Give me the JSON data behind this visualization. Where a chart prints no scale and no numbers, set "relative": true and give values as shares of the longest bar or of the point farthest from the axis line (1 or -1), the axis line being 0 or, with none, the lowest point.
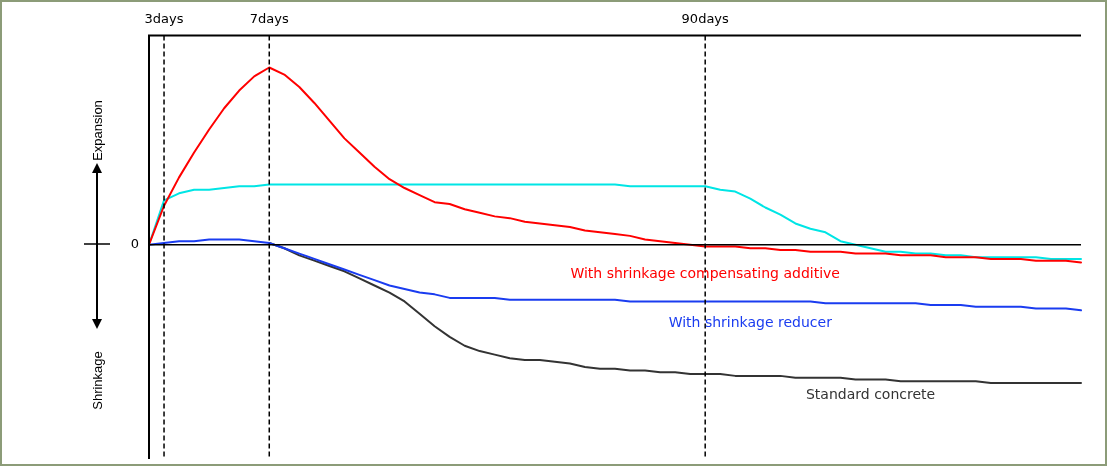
{
  "chart_data": {
    "type": "line",
    "relative": true,
    "grid": "x",
    "legend": false,
    "marker": "none",
    "line_style": "solid",
    "categories": [
      null,
      "3days",
      null,
      null,
      null,
      null,
      null,
      null,
      "7days",
      null,
      null,
      null,
      null,
      null,
      null,
      null,
      null,
      null,
      null,
      null,
      null,
      null,
      null,
      null,
      null,
      null,
      null,
      null,
      null,
      null,
      null,
      null,
      null,
      null,
      null,
      null,
      null,
      "90days",
      null,
      null,
      null,
      null,
      null,
      null,
      null,
      null,
      null,
      null,
      null,
      null,
      null,
      null,
      null,
      null,
      null,
      null,
      null,
      null,
      null,
      null,
      null,
      null,
      null
    ],
    "annotations": [
      "Expansion",
      "Shrinkage"
    ],
    "ref_lines": [
      {
        "axis": "y",
        "value": 0,
        "label": "0",
        "color": "#000000"
      }
    ],
    "series": [
      {
        "name": "With shrinkage compensating additive",
        "color": "#ff0000",
        "values": [
          0,
          0.22,
          0.38,
          0.52,
          0.65,
          0.77,
          0.87,
          0.95,
          1,
          0.96,
          0.89,
          0.8,
          0.7,
          0.6,
          0.52,
          0.44,
          0.37,
          0.32,
          0.28,
          0.24,
          0.23,
          0.2,
          0.18,
          0.16,
          0.15,
          0.13,
          0.12,
          0.11,
          0.1,
          0.08,
          0.07,
          0.06,
          0.05,
          0.03,
          0.02,
          0.01,
          0,
          -0.01,
          -0.01,
          -0.01,
          -0.02,
          -0.02,
          -0.03,
          -0.03,
          -0.04,
          -0.04,
          -0.04,
          -0.05,
          -0.05,
          -0.05,
          -0.06,
          -0.06,
          -0.06,
          -0.07,
          -0.07,
          -0.07,
          -0.08,
          -0.08,
          -0.08,
          -0.09,
          -0.09,
          -0.09,
          -0.1
        ]
      },
      {
        "color": "#00e5e5",
        "values": [
          0,
          0.25,
          0.29,
          0.31,
          0.31,
          0.32,
          0.33,
          0.33,
          0.34,
          0.34,
          0.34,
          0.34,
          0.34,
          0.34,
          0.34,
          0.34,
          0.34,
          0.34,
          0.34,
          0.34,
          0.34,
          0.34,
          0.34,
          0.34,
          0.34,
          0.34,
          0.34,
          0.34,
          0.34,
          0.34,
          0.34,
          0.34,
          0.33,
          0.33,
          0.33,
          0.33,
          0.33,
          0.33,
          0.31,
          0.3,
          0.26,
          0.21,
          0.17,
          0.12,
          0.09,
          0.07,
          0.02,
          0,
          -0.02,
          -0.04,
          -0.04,
          -0.05,
          -0.05,
          -0.06,
          -0.06,
          -0.07,
          -0.07,
          -0.07,
          -0.07,
          -0.07,
          -0.08,
          -0.08,
          -0.08
        ]
      },
      {
        "name": "With shrinkage reducer",
        "color": "#1a3cf0",
        "values": [
          0,
          0.01,
          0.02,
          0.02,
          0.03,
          0.03,
          0.03,
          0.02,
          0.01,
          -0.02,
          -0.05,
          -0.08,
          -0.11,
          -0.14,
          -0.17,
          -0.2,
          -0.23,
          -0.25,
          -0.27,
          -0.28,
          -0.3,
          -0.3,
          -0.3,
          -0.3,
          -0.31,
          -0.31,
          -0.31,
          -0.31,
          -0.31,
          -0.31,
          -0.31,
          -0.31,
          -0.32,
          -0.32,
          -0.32,
          -0.32,
          -0.32,
          -0.32,
          -0.32,
          -0.32,
          -0.32,
          -0.32,
          -0.32,
          -0.32,
          -0.32,
          -0.33,
          -0.33,
          -0.33,
          -0.33,
          -0.33,
          -0.33,
          -0.33,
          -0.34,
          -0.34,
          -0.34,
          -0.35,
          -0.35,
          -0.35,
          -0.35,
          -0.36,
          -0.36,
          -0.36,
          -0.37
        ]
      },
      {
        "name": "Standard concrete",
        "color": "#333333",
        "values": [
          null,
          null,
          null,
          null,
          null,
          null,
          null,
          null,
          0.01,
          -0.02,
          -0.06,
          -0.09,
          -0.12,
          -0.15,
          -0.19,
          -0.23,
          -0.27,
          -0.32,
          -0.39,
          -0.46,
          -0.52,
          -0.57,
          -0.6,
          -0.62,
          -0.64,
          -0.65,
          -0.65,
          -0.66,
          -0.67,
          -0.69,
          -0.7,
          -0.7,
          -0.71,
          -0.71,
          -0.72,
          -0.72,
          -0.73,
          -0.73,
          -0.73,
          -0.74,
          -0.74,
          -0.74,
          -0.74,
          -0.75,
          -0.75,
          -0.75,
          -0.75,
          -0.76,
          -0.76,
          -0.76,
          -0.77,
          -0.77,
          -0.77,
          -0.77,
          -0.77,
          -0.77,
          -0.78,
          -0.78,
          -0.78,
          -0.78,
          -0.78,
          -0.78,
          -0.78
        ]
      }
    ]
  }
}
